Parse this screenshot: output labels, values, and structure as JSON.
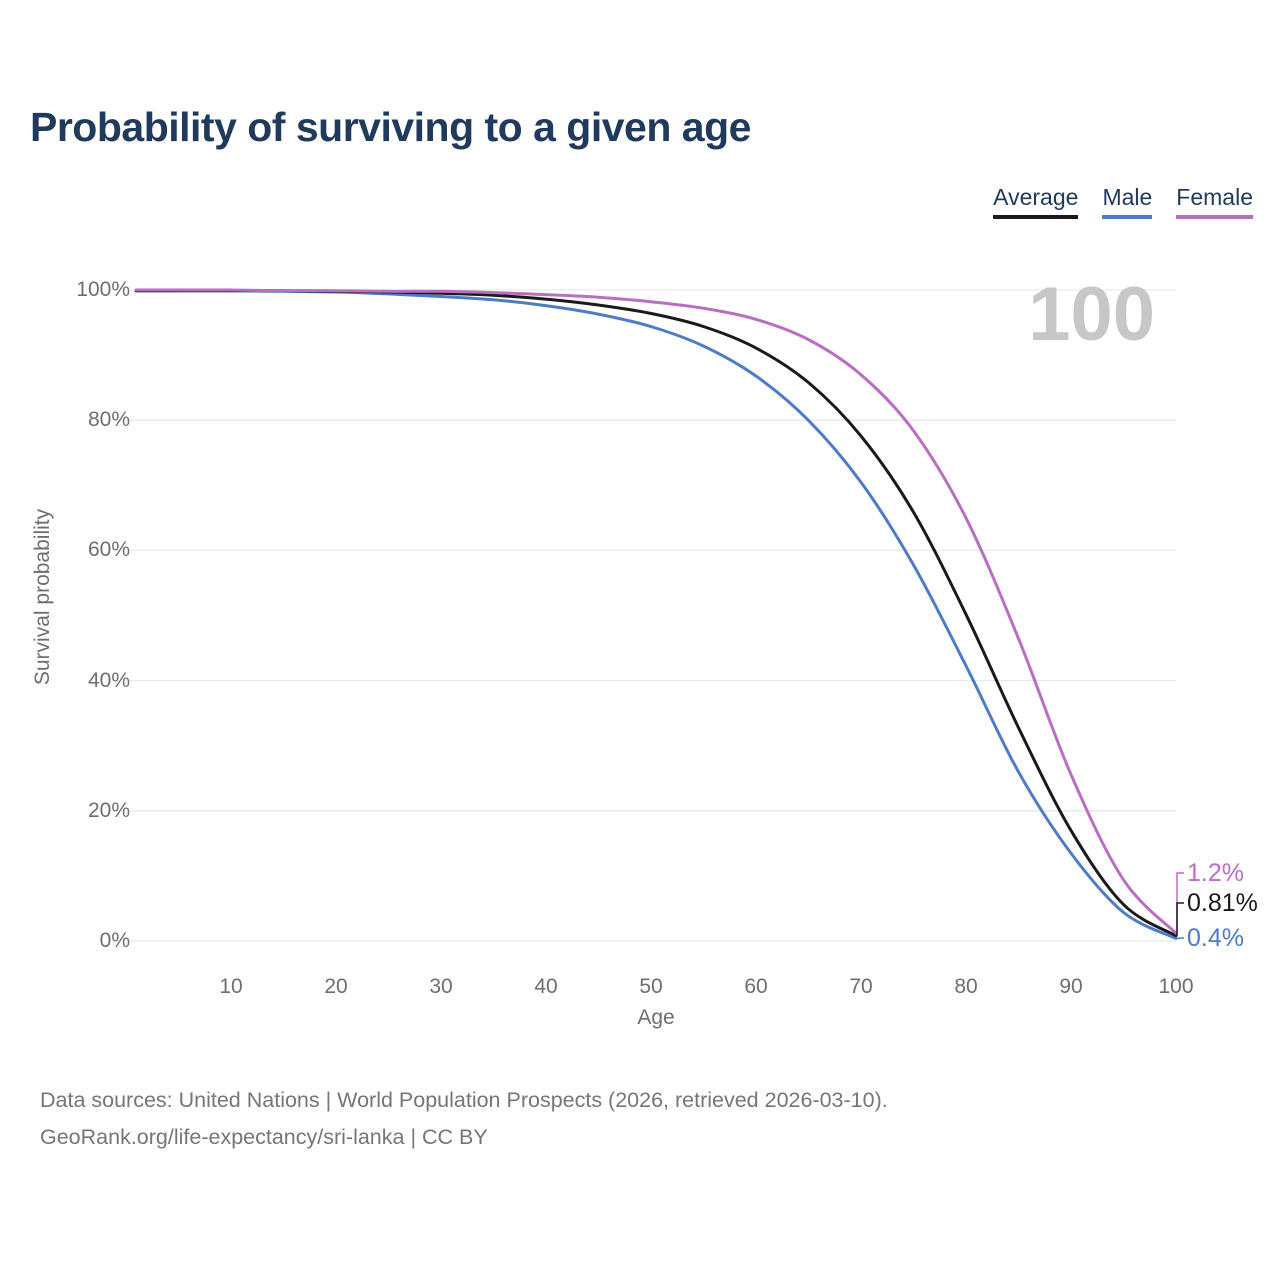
{
  "title": "Probability of surviving to a given age",
  "legend": {
    "items": [
      {
        "label": "Average",
        "color": "#1a1a1a"
      },
      {
        "label": "Male",
        "color": "#4d7cc7"
      },
      {
        "label": "Female",
        "color": "#ba6ec3"
      }
    ]
  },
  "chart_data": {
    "type": "line",
    "title": "Probability of surviving to a given age",
    "x_label": "Age",
    "y_label": "Survival probability",
    "watermark_hovered_age": "100",
    "x": [
      1,
      5,
      10,
      15,
      20,
      25,
      30,
      35,
      40,
      45,
      50,
      55,
      60,
      65,
      70,
      75,
      80,
      85,
      90,
      95,
      100
    ],
    "series": [
      {
        "name": "Male",
        "color": "#4d7cc7",
        "end_label": "0.4%",
        "values": [
          99.9,
          99.9,
          99.9,
          99.8,
          99.7,
          99.4,
          99.0,
          98.5,
          97.6,
          96.3,
          94.4,
          91.4,
          86.8,
          80.0,
          70.5,
          57.8,
          42.3,
          26.0,
          13.5,
          4.4,
          0.4
        ]
      },
      {
        "name": "Average",
        "color": "#1a1a1a",
        "end_label": "0.81%",
        "values": [
          99.9,
          99.9,
          99.9,
          99.9,
          99.8,
          99.7,
          99.5,
          99.2,
          98.6,
          97.7,
          96.4,
          94.4,
          91.1,
          85.8,
          77.6,
          65.9,
          50.2,
          32.8,
          17.0,
          5.6,
          0.81
        ]
      },
      {
        "name": "Female",
        "color": "#ba6ec3",
        "end_label": "1.2%",
        "values": [
          100.0,
          100.0,
          100.0,
          99.9,
          99.9,
          99.8,
          99.8,
          99.6,
          99.3,
          98.9,
          98.2,
          97.2,
          95.5,
          92.4,
          87.0,
          78.4,
          65.0,
          46.5,
          25.6,
          9.4,
          1.2
        ]
      }
    ],
    "x_ticks": [
      10,
      20,
      30,
      40,
      50,
      60,
      70,
      80,
      90,
      100
    ],
    "y_ticks": [
      {
        "value": 0,
        "label": "0%"
      },
      {
        "value": 20,
        "label": "20%"
      },
      {
        "value": 40,
        "label": "40%"
      },
      {
        "value": 60,
        "label": "60%"
      },
      {
        "value": 80,
        "label": "80%"
      },
      {
        "value": 100,
        "label": "100%"
      }
    ],
    "xlim": [
      1,
      100
    ],
    "ylim": [
      0,
      100
    ],
    "grid": "horizontal",
    "gridline_color": "#e9e9e9",
    "legend_position": "top-right"
  },
  "footer": {
    "line1": "Data sources: United Nations | World Population Prospects (2026, retrieved 2026-03-10).",
    "line2": "GeoRank.org/life-expectancy/sri-lanka | CC BY"
  }
}
